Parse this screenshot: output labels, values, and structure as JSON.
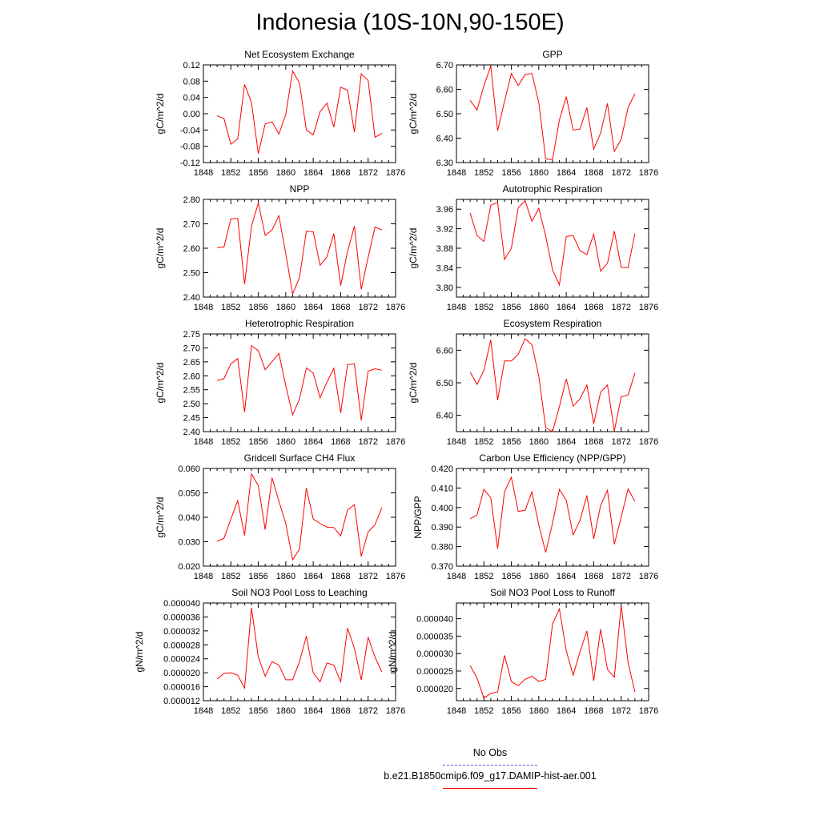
{
  "title": "Indonesia (10S-10N,90-150E)",
  "colors": {
    "model": "#ff0000",
    "obs": "#5a5ae0",
    "axis": "#000000"
  },
  "legend": {
    "obs_label": "No Obs",
    "model_label": "b.e21.B1850cmip6.f09_g17.DAMIP-hist-aer.001"
  },
  "x_ticks": [
    "1848",
    "1852",
    "1856",
    "1860",
    "1864",
    "1868",
    "1872",
    "1876"
  ],
  "chart_data": [
    {
      "type": "line",
      "title": "Net Ecosystem Exchange",
      "ylabel": "gC/m^2/d",
      "xlim": [
        1848,
        1876
      ],
      "ylim": [
        -0.12,
        0.12
      ],
      "yticks": [
        "-0.12",
        "-0.08",
        "-0.04",
        "0.00",
        "0.04",
        "0.08",
        "0.12"
      ],
      "ytick_values": [
        -0.12,
        -0.08,
        -0.04,
        0.0,
        0.04,
        0.08,
        0.12
      ],
      "x": [
        1850,
        1851,
        1852,
        1853,
        1854,
        1855,
        1856,
        1857,
        1858,
        1859,
        1860,
        1861,
        1862,
        1863,
        1864,
        1865,
        1866,
        1867,
        1868,
        1869,
        1870,
        1871,
        1872,
        1873,
        1874
      ],
      "series": [
        {
          "values": [
            -0.005,
            -0.012,
            -0.075,
            -0.062,
            0.072,
            0.028,
            -0.098,
            -0.025,
            -0.02,
            -0.05,
            -0.002,
            0.105,
            0.075,
            -0.04,
            -0.052,
            0.005,
            0.026,
            -0.033,
            0.065,
            0.058,
            -0.045,
            0.098,
            0.082,
            -0.058,
            -0.048
          ]
        }
      ]
    },
    {
      "type": "line",
      "title": "GPP",
      "ylabel": "gC/m^2/d",
      "xlim": [
        1848,
        1876
      ],
      "ylim": [
        6.3,
        6.7
      ],
      "yticks": [
        "6.30",
        "6.40",
        "6.50",
        "6.60",
        "6.70"
      ],
      "ytick_values": [
        6.3,
        6.4,
        6.5,
        6.6,
        6.7
      ],
      "x": [
        1850,
        1851,
        1852,
        1853,
        1854,
        1855,
        1856,
        1857,
        1858,
        1859,
        1860,
        1861,
        1862,
        1863,
        1864,
        1865,
        1866,
        1867,
        1868,
        1869,
        1870,
        1871,
        1872,
        1873,
        1874
      ],
      "series": [
        {
          "values": [
            6.555,
            6.515,
            6.615,
            6.695,
            6.43,
            6.55,
            6.665,
            6.615,
            6.66,
            6.665,
            6.545,
            6.315,
            6.312,
            6.475,
            6.57,
            6.433,
            6.437,
            6.525,
            6.355,
            6.42,
            6.542,
            6.345,
            6.395,
            6.525,
            6.582
          ]
        }
      ]
    },
    {
      "type": "line",
      "title": "NPP",
      "ylabel": "gC/m^2/d",
      "xlim": [
        1848,
        1876
      ],
      "ylim": [
        2.4,
        2.8
      ],
      "yticks": [
        "2.40",
        "2.50",
        "2.60",
        "2.70",
        "2.80"
      ],
      "ytick_values": [
        2.4,
        2.5,
        2.6,
        2.7,
        2.8
      ],
      "x": [
        1850,
        1851,
        1852,
        1853,
        1854,
        1855,
        1856,
        1857,
        1858,
        1859,
        1860,
        1861,
        1862,
        1863,
        1864,
        1865,
        1866,
        1867,
        1868,
        1869,
        1870,
        1871,
        1872,
        1873,
        1874
      ],
      "series": [
        {
          "values": [
            2.603,
            2.605,
            2.72,
            2.722,
            2.453,
            2.69,
            2.785,
            2.652,
            2.675,
            2.733,
            2.578,
            2.413,
            2.48,
            2.67,
            2.667,
            2.53,
            2.565,
            2.66,
            2.447,
            2.587,
            2.69,
            2.432,
            2.563,
            2.687,
            2.675
          ]
        }
      ]
    },
    {
      "type": "line",
      "title": "Autotrophic Respiration",
      "ylabel": "gC/m^2/d",
      "xlim": [
        1848,
        1876
      ],
      "ylim": [
        3.78,
        3.98
      ],
      "yticks": [
        "3.80",
        "3.84",
        "3.88",
        "3.92",
        "3.96"
      ],
      "ytick_values": [
        3.8,
        3.84,
        3.88,
        3.92,
        3.96
      ],
      "x": [
        1850,
        1851,
        1852,
        1853,
        1854,
        1855,
        1856,
        1857,
        1858,
        1859,
        1860,
        1861,
        1862,
        1863,
        1864,
        1865,
        1866,
        1867,
        1868,
        1869,
        1870,
        1871,
        1872,
        1873,
        1874
      ],
      "series": [
        {
          "values": [
            3.952,
            3.906,
            3.894,
            3.968,
            3.974,
            3.857,
            3.88,
            3.963,
            3.977,
            3.935,
            3.962,
            3.905,
            3.836,
            3.805,
            3.904,
            3.906,
            3.875,
            3.867,
            3.909,
            3.833,
            3.849,
            3.915,
            3.841,
            3.84,
            3.91
          ]
        }
      ]
    },
    {
      "type": "line",
      "title": "Heterotrophic Respiration",
      "ylabel": "gC/m^2/d",
      "xlim": [
        1848,
        1876
      ],
      "ylim": [
        2.4,
        2.75
      ],
      "yticks": [
        "2.40",
        "2.45",
        "2.50",
        "2.55",
        "2.60",
        "2.65",
        "2.70",
        "2.75"
      ],
      "ytick_values": [
        2.4,
        2.45,
        2.5,
        2.55,
        2.6,
        2.65,
        2.7,
        2.75
      ],
      "x": [
        1850,
        1851,
        1852,
        1853,
        1854,
        1855,
        1856,
        1857,
        1858,
        1859,
        1860,
        1861,
        1862,
        1863,
        1864,
        1865,
        1866,
        1867,
        1868,
        1869,
        1870,
        1871,
        1872,
        1873,
        1874
      ],
      "series": [
        {
          "values": [
            2.583,
            2.59,
            2.643,
            2.662,
            2.47,
            2.708,
            2.69,
            2.622,
            2.65,
            2.68,
            2.565,
            2.46,
            2.517,
            2.628,
            2.61,
            2.522,
            2.577,
            2.627,
            2.467,
            2.64,
            2.643,
            2.44,
            2.617,
            2.625,
            2.62
          ]
        }
      ]
    },
    {
      "type": "line",
      "title": "Ecosystem Respiration",
      "ylabel": "gC/m^2/d",
      "xlim": [
        1848,
        1876
      ],
      "ylim": [
        6.35,
        6.65
      ],
      "yticks": [
        "6.40",
        "6.50",
        "6.60"
      ],
      "ytick_values": [
        6.4,
        6.5,
        6.6
      ],
      "x": [
        1850,
        1851,
        1852,
        1853,
        1854,
        1855,
        1856,
        1857,
        1858,
        1859,
        1860,
        1861,
        1862,
        1863,
        1864,
        1865,
        1866,
        1867,
        1868,
        1869,
        1870,
        1871,
        1872,
        1873,
        1874
      ],
      "series": [
        {
          "values": [
            6.533,
            6.495,
            6.538,
            6.632,
            6.447,
            6.567,
            6.567,
            6.587,
            6.635,
            6.617,
            6.52,
            6.362,
            6.35,
            6.427,
            6.512,
            6.428,
            6.451,
            6.493,
            6.374,
            6.471,
            6.493,
            6.352,
            6.457,
            6.462,
            6.53
          ]
        }
      ]
    },
    {
      "type": "line",
      "title": "Gridcell Surface CH4 Flux",
      "ylabel": "gC/m^2/d",
      "xlim": [
        1848,
        1876
      ],
      "ylim": [
        0.02,
        0.06
      ],
      "yticks": [
        "0.020",
        "0.030",
        "0.040",
        "0.050",
        "0.060"
      ],
      "ytick_values": [
        0.02,
        0.03,
        0.04,
        0.05,
        0.06
      ],
      "x": [
        1850,
        1851,
        1852,
        1853,
        1854,
        1855,
        1856,
        1857,
        1858,
        1859,
        1860,
        1861,
        1862,
        1863,
        1864,
        1865,
        1866,
        1867,
        1868,
        1869,
        1870,
        1871,
        1872,
        1873,
        1874
      ],
      "series": [
        {
          "values": [
            0.0302,
            0.0314,
            0.0393,
            0.0468,
            0.0326,
            0.0578,
            0.053,
            0.035,
            0.0562,
            0.0466,
            0.0375,
            0.0226,
            0.027,
            0.052,
            0.0393,
            0.0375,
            0.036,
            0.0358,
            0.0324,
            0.043,
            0.0452,
            0.024,
            0.034,
            0.037,
            0.044
          ]
        }
      ]
    },
    {
      "type": "line",
      "title": "Carbon Use Efficiency (NPP/GPP)",
      "ylabel": "NPP/GPP",
      "xlim": [
        1848,
        1876
      ],
      "ylim": [
        0.37,
        0.42
      ],
      "yticks": [
        "0.370",
        "0.380",
        "0.390",
        "0.400",
        "0.410",
        "0.420"
      ],
      "ytick_values": [
        0.37,
        0.38,
        0.39,
        0.4,
        0.41,
        0.42
      ],
      "x": [
        1850,
        1851,
        1852,
        1853,
        1854,
        1855,
        1856,
        1857,
        1858,
        1859,
        1860,
        1861,
        1862,
        1863,
        1864,
        1865,
        1866,
        1867,
        1868,
        1869,
        1870,
        1871,
        1872,
        1873,
        1874
      ],
      "series": [
        {
          "values": [
            0.3942,
            0.3962,
            0.4093,
            0.405,
            0.379,
            0.408,
            0.4155,
            0.398,
            0.3986,
            0.408,
            0.391,
            0.377,
            0.392,
            0.4093,
            0.4037,
            0.386,
            0.3935,
            0.4062,
            0.384,
            0.401,
            0.4088,
            0.3812,
            0.395,
            0.4095,
            0.4032
          ]
        }
      ]
    },
    {
      "type": "line",
      "title": "Soil NO3 Pool Loss to Leaching",
      "ylabel": "gN/m^2/d",
      "xlim": [
        1848,
        1876
      ],
      "ylim": [
        1.2e-05,
        4e-05
      ],
      "yticks": [
        "0.000012",
        "0.000016",
        "0.000020",
        "0.000024",
        "0.000028",
        "0.000032",
        "0.000036",
        "0.000040"
      ],
      "ytick_values": [
        1.2e-05,
        1.6e-05,
        2e-05,
        2.4e-05,
        2.8e-05,
        3.2e-05,
        3.6e-05,
        4e-05
      ],
      "x": [
        1850,
        1851,
        1852,
        1853,
        1854,
        1855,
        1856,
        1857,
        1858,
        1859,
        1860,
        1861,
        1862,
        1863,
        1864,
        1865,
        1866,
        1867,
        1868,
        1869,
        1870,
        1871,
        1872,
        1873,
        1874
      ],
      "series": [
        {
          "values": [
            1.82e-05,
            1.98e-05,
            2e-05,
            1.93e-05,
            1.56e-05,
            3.86e-05,
            2.45e-05,
            1.9e-05,
            2.32e-05,
            2.22e-05,
            1.8e-05,
            1.8e-05,
            2.32e-05,
            3.05e-05,
            2e-05,
            1.74e-05,
            2.28e-05,
            2.22e-05,
            1.74e-05,
            3.28e-05,
            2.7e-05,
            1.8e-05,
            3.02e-05,
            2.45e-05,
            2.02e-05
          ]
        }
      ]
    },
    {
      "type": "line",
      "title": "Soil NO3 Pool Loss to Runoff",
      "ylabel": "gN/m^2/d",
      "xlim": [
        1848,
        1876
      ],
      "ylim": [
        1.65e-05,
        4.45e-05
      ],
      "yticks": [
        "0.000020",
        "0.000025",
        "0.000030",
        "0.000035",
        "0.000040"
      ],
      "ytick_values": [
        2e-05,
        2.5e-05,
        3e-05,
        3.5e-05,
        4e-05
      ],
      "x": [
        1850,
        1851,
        1852,
        1853,
        1854,
        1855,
        1856,
        1857,
        1858,
        1859,
        1860,
        1861,
        1862,
        1863,
        1864,
        1865,
        1866,
        1867,
        1868,
        1869,
        1870,
        1871,
        1872,
        1873,
        1874
      ],
      "series": [
        {
          "values": [
            2.65e-05,
            2.3e-05,
            1.72e-05,
            1.86e-05,
            1.9e-05,
            2.95e-05,
            2.2e-05,
            2.08e-05,
            2.26e-05,
            2.35e-05,
            2.2e-05,
            2.26e-05,
            3.85e-05,
            4.28e-05,
            3.08e-05,
            2.38e-05,
            3.05e-05,
            3.65e-05,
            2.22e-05,
            3.7e-05,
            2.55e-05,
            2.32e-05,
            4.38e-05,
            2.75e-05,
            1.9e-05
          ]
        }
      ]
    }
  ]
}
